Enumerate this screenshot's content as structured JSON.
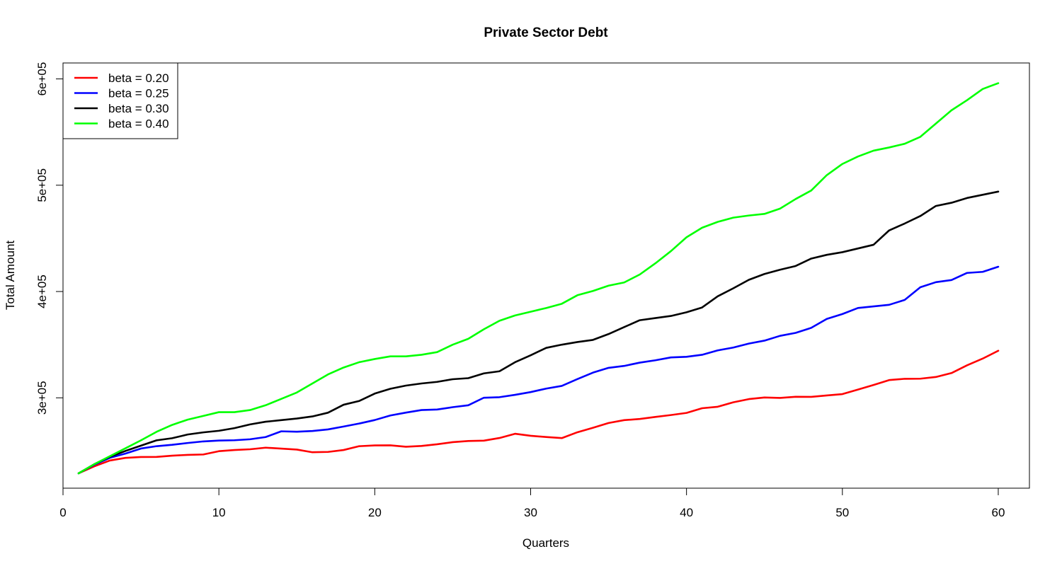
{
  "chart_data": {
    "type": "line",
    "title": "Private Sector Debt",
    "xlabel": "Quarters",
    "ylabel": "Total Amount",
    "xlim": [
      0,
      62
    ],
    "ylim": [
      215000,
      615000
    ],
    "x_ticks": [
      0,
      10,
      20,
      30,
      40,
      50,
      60
    ],
    "x_tick_labels": [
      "0",
      "10",
      "20",
      "30",
      "40",
      "50",
      "60"
    ],
    "y_ticks": [
      300000,
      400000,
      500000,
      600000
    ],
    "y_tick_labels": [
      "3e+05",
      "4e+05",
      "5e+05",
      "6e+05"
    ],
    "grid": false,
    "legend_position": "top-left",
    "x": [
      1,
      2,
      3,
      4,
      5,
      6,
      7,
      8,
      9,
      10,
      11,
      12,
      13,
      14,
      15,
      16,
      17,
      18,
      19,
      20,
      21,
      22,
      23,
      24,
      25,
      26,
      27,
      28,
      29,
      30,
      31,
      32,
      33,
      34,
      35,
      36,
      37,
      38,
      39,
      40,
      41,
      42,
      43,
      44,
      45,
      46,
      47,
      48,
      49,
      50,
      51,
      52,
      53,
      54,
      55,
      56,
      57,
      58,
      59,
      60
    ],
    "series": [
      {
        "name": "beta = 0.20",
        "color": "#ff0000",
        "values": [
          229000,
          235500,
          241000,
          243500,
          244300,
          244400,
          245600,
          246300,
          246700,
          249800,
          250900,
          251600,
          253100,
          252200,
          251300,
          248800,
          249100,
          250900,
          254500,
          255200,
          255300,
          254000,
          254700,
          256300,
          258300,
          259400,
          259700,
          262200,
          266200,
          264300,
          263100,
          262100,
          267600,
          271800,
          276300,
          279000,
          280100,
          282000,
          283800,
          285800,
          290200,
          291600,
          295800,
          298800,
          300300,
          299900,
          301000,
          300900,
          302200,
          303500,
          307800,
          312100,
          316700,
          317900,
          318000,
          319600,
          323300,
          330600,
          336900,
          344300
        ]
      },
      {
        "name": "beta = 0.25",
        "color": "#0000ff",
        "values": [
          229000,
          237000,
          243500,
          247500,
          252300,
          254500,
          255800,
          257500,
          259000,
          259800,
          260100,
          261000,
          263100,
          268500,
          268100,
          268800,
          270300,
          273000,
          275800,
          279100,
          283400,
          286100,
          288500,
          289000,
          291200,
          293000,
          300100,
          300600,
          302800,
          305400,
          308700,
          311200,
          317600,
          323700,
          328200,
          330000,
          333100,
          335300,
          338000,
          338600,
          340500,
          344600,
          347300,
          351000,
          353800,
          358300,
          361100,
          365800,
          374200,
          378800,
          384500,
          386000,
          387500,
          392100,
          404000,
          408800,
          410800,
          417500,
          418500,
          423300
        ]
      },
      {
        "name": "beta = 0.30",
        "color": "#000000",
        "values": [
          229000,
          237500,
          244500,
          250000,
          255000,
          260000,
          262000,
          265500,
          267500,
          269000,
          271500,
          275000,
          277500,
          279000,
          280500,
          282500,
          286000,
          293500,
          297000,
          304000,
          308500,
          311500,
          313500,
          315000,
          317500,
          318500,
          323000,
          325000,
          333500,
          340000,
          347000,
          350000,
          352500,
          354500,
          360000,
          366500,
          373000,
          375000,
          377000,
          380500,
          385000,
          395500,
          403000,
          411000,
          416500,
          420500,
          424000,
          431000,
          434500,
          437000,
          440500,
          444000,
          457500,
          464000,
          471000,
          480500,
          483500,
          488000,
          491000,
          494000
        ]
      },
      {
        "name": "beta = 0.40",
        "color": "#00ff00",
        "values": [
          229000,
          237500,
          245000,
          252500,
          260000,
          268000,
          274500,
          279500,
          283000,
          286500,
          286500,
          288500,
          293000,
          299000,
          305000,
          313500,
          322000,
          328500,
          333500,
          336500,
          339000,
          339000,
          340500,
          343000,
          350000,
          355500,
          364500,
          372500,
          377500,
          381000,
          384500,
          388500,
          396500,
          400500,
          405500,
          408500,
          416000,
          426500,
          438000,
          451000,
          460000,
          465500,
          469500,
          471500,
          473000,
          478000,
          487000,
          495000,
          509500,
          520000,
          527000,
          532500,
          535500,
          539000,
          545500,
          558000,
          570500,
          580000,
          590500,
          596000
        ]
      }
    ]
  }
}
